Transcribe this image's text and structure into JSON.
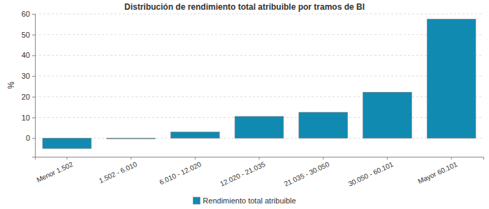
{
  "chart_data": {
    "type": "bar",
    "title": "Distribución de rendimiento total atribuible por tramos de BI",
    "y_label": "%",
    "categories": [
      "Menor 1.502",
      "1.502 - 6.010",
      "6.010 - 12.020",
      "12.020 - 21.035",
      "21.035 - 30.050",
      "30.050 - 60.101",
      "Mayor 60.101"
    ],
    "series": [
      {
        "name": "Rendimiento total atribuible",
        "color": "#118ab2",
        "values": [
          -5,
          -0.3,
          3,
          10.5,
          12.5,
          22.2,
          57.5
        ]
      }
    ],
    "ylim": [
      -9,
      60
    ],
    "yticks": [
      0,
      10,
      20,
      30,
      40,
      50,
      60
    ],
    "grid": true,
    "legend": "bottom"
  }
}
